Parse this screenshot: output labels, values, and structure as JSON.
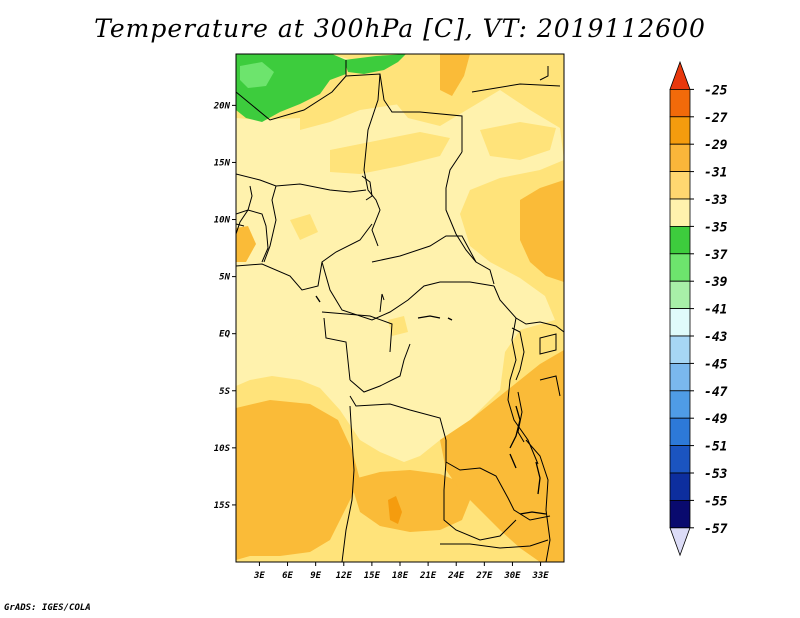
{
  "title": "Temperature at 300hPa [C], VT: 2019112600",
  "credit": "GrADS: IGES/COLA",
  "map": {
    "lat_labels": [
      {
        "text": "20N",
        "lat": 20
      },
      {
        "text": "15N",
        "lat": 15
      },
      {
        "text": "10N",
        "lat": 10
      },
      {
        "text": "5N",
        "lat": 5
      },
      {
        "text": "EQ",
        "lat": 0
      },
      {
        "text": "5S",
        "lat": -5
      },
      {
        "text": "10S",
        "lat": -10
      },
      {
        "text": "15S",
        "lat": -15
      }
    ],
    "lon_labels": [
      {
        "text": "3E",
        "lon": 3
      },
      {
        "text": "6E",
        "lon": 6
      },
      {
        "text": "9E",
        "lon": 9
      },
      {
        "text": "12E",
        "lon": 12
      },
      {
        "text": "15E",
        "lon": 15
      },
      {
        "text": "18E",
        "lon": 18
      },
      {
        "text": "21E",
        "lon": 21
      },
      {
        "text": "24E",
        "lon": 24
      },
      {
        "text": "27E",
        "lon": 27
      },
      {
        "text": "30E",
        "lon": 30
      },
      {
        "text": "33E",
        "lon": 33
      }
    ],
    "lon_range": [
      0.5,
      35.5
    ],
    "lat_range": [
      -20,
      24.5
    ],
    "fill_colors": {
      "band_-37_-35": "#3dcc3d",
      "band_-35_-33": "#fff2ad",
      "band_-33_-31": "#ffe37a",
      "band_-31_-29": "#fabb38",
      "band_-29_-27": "#f09e14"
    }
  },
  "colorbar": {
    "levels": [
      "-25",
      "-27",
      "-29",
      "-31",
      "-33",
      "-35",
      "-37",
      "-39",
      "-41",
      "-43",
      "-45",
      "-47",
      "-49",
      "-51",
      "-53",
      "-55",
      "-57"
    ],
    "colors": [
      "#e8380d",
      "#f26a0a",
      "#f59c0e",
      "#fab63a",
      "#ffd770",
      "#fff2ad",
      "#3dcc3d",
      "#6de46d",
      "#a8f0a8",
      "#e0fbfb",
      "#a6d6f5",
      "#7ab8ee",
      "#4f9ce6",
      "#2d79d8",
      "#1b54c0",
      "#0d2e9e",
      "#090a6e",
      "#dcdcf7"
    ]
  }
}
